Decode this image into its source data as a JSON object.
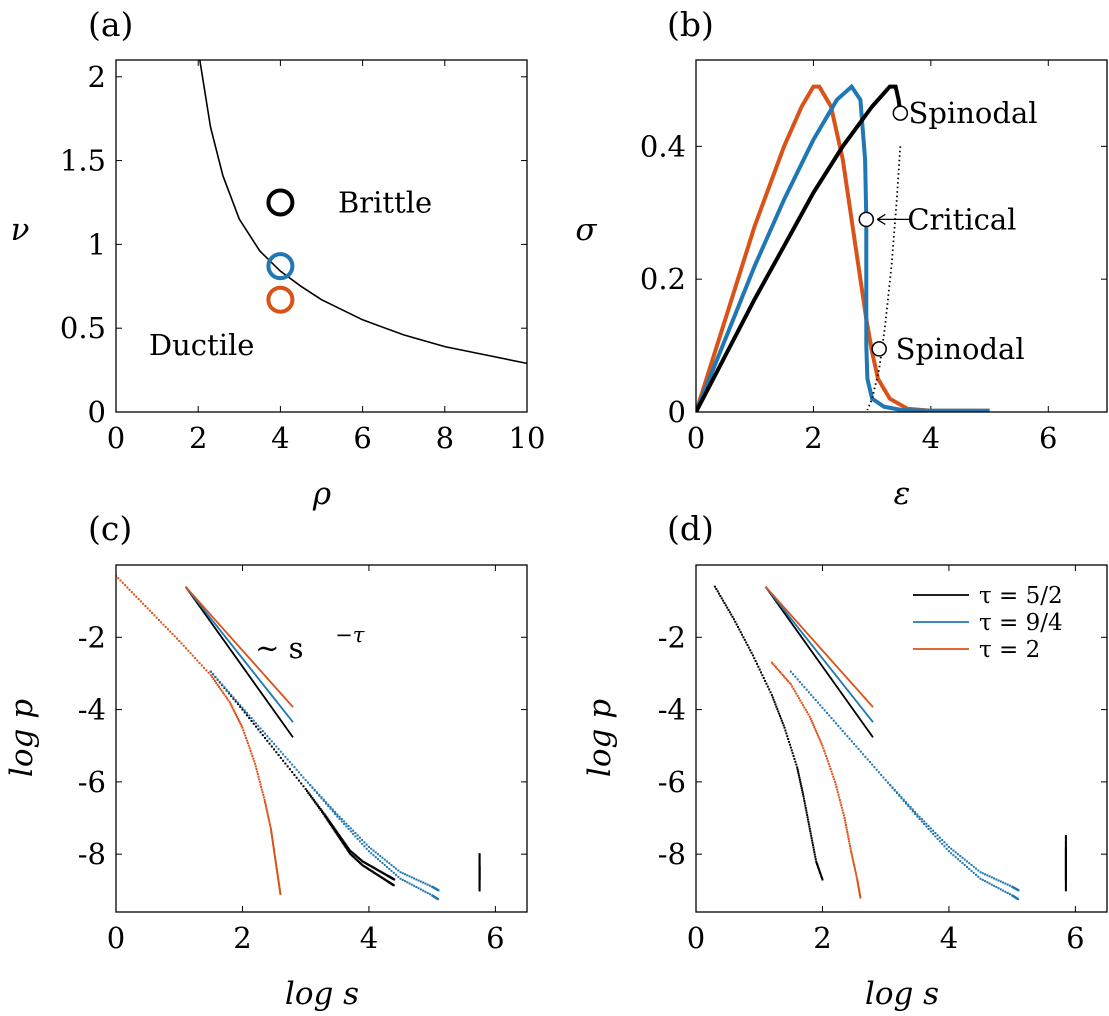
{
  "colors": {
    "black": "#000000",
    "blue": "#1f77b4",
    "orange": "#d95319"
  },
  "chart_data": [
    {
      "panel": "(a)",
      "type": "line",
      "xlabel": "ρ",
      "ylabel": "ν",
      "xlim": [
        0,
        10
      ],
      "ylim": [
        0,
        2.1
      ],
      "xticks": [
        "0",
        "2",
        "4",
        "6",
        "8",
        "10"
      ],
      "xtick_values": [
        0,
        2,
        4,
        6,
        8,
        10
      ],
      "yticks": [
        "0",
        "0.5",
        "1",
        "1.5",
        "2"
      ],
      "ytick_values": [
        0,
        0.5,
        1,
        1.5,
        2
      ],
      "series": [
        {
          "type": "line",
          "color": "#000000",
          "x": [
            2.04,
            2.3,
            2.6,
            3.0,
            3.5,
            4.0,
            4.5,
            5.0,
            6.0,
            7.0,
            8.0,
            9.0,
            10.0
          ],
          "y": [
            2.1,
            1.7,
            1.41,
            1.15,
            0.96,
            0.84,
            0.75,
            0.67,
            0.55,
            0.46,
            0.39,
            0.34,
            0.29
          ]
        },
        {
          "type": "marker",
          "color": "#000000",
          "x": 4,
          "y": 1.25
        },
        {
          "type": "marker",
          "color": "#1f77b4",
          "x": 4,
          "y": 0.87
        },
        {
          "type": "marker",
          "color": "#d95319",
          "x": 4,
          "y": 0.67
        }
      ],
      "annotations": [
        {
          "text": "Brittle",
          "x": 5.4,
          "y": 1.25
        },
        {
          "text": "Ductile",
          "x": 0.8,
          "y": 0.4
        }
      ]
    },
    {
      "panel": "(b)",
      "type": "line",
      "xlabel": "ε",
      "ylabel": "σ",
      "xlim": [
        0,
        7
      ],
      "ylim": [
        0,
        0.53
      ],
      "xticks": [
        "0",
        "2",
        "4",
        "6"
      ],
      "xtick_values": [
        0,
        2,
        4,
        6
      ],
      "yticks": [
        "0",
        "0.2",
        "0.4"
      ],
      "ytick_values": [
        0,
        0.2,
        0.4
      ],
      "series": [
        {
          "color": "#d95319",
          "x": [
            0,
            0.5,
            1.0,
            1.5,
            1.8,
            2.0,
            2.1,
            2.3,
            2.5,
            2.7,
            2.9,
            3.0,
            3.1,
            3.3,
            3.6,
            4.0,
            5.0
          ],
          "y": [
            0,
            0.14,
            0.28,
            0.4,
            0.46,
            0.49,
            0.49,
            0.46,
            0.38,
            0.26,
            0.14,
            0.09,
            0.05,
            0.02,
            0.005,
            0.002,
            0.002
          ]
        },
        {
          "color": "#1f77b4",
          "x": [
            0,
            0.5,
            1.0,
            1.5,
            2.0,
            2.4,
            2.65,
            2.8,
            2.88,
            2.9,
            2.9,
            2.92,
            3.0,
            3.2,
            3.5,
            4.0,
            5.0
          ],
          "y": [
            0,
            0.11,
            0.22,
            0.32,
            0.41,
            0.47,
            0.49,
            0.47,
            0.38,
            0.29,
            0.1,
            0.05,
            0.02,
            0.008,
            0.003,
            0.002,
            0.002
          ]
        },
        {
          "color": "#000000",
          "x": [
            0,
            0.5,
            1.0,
            1.5,
            2.0,
            2.5,
            3.0,
            3.3,
            3.4,
            3.45,
            3.48
          ],
          "y": [
            0,
            0.085,
            0.17,
            0.25,
            0.33,
            0.4,
            0.46,
            0.49,
            0.49,
            0.47,
            0.45
          ]
        },
        {
          "color": "#000000",
          "dotted": true,
          "x": [
            3.48,
            3.42,
            3.33,
            3.22,
            3.12,
            3.0,
            2.92
          ],
          "y": [
            0.4,
            0.32,
            0.22,
            0.13,
            0.065,
            0.02,
            0.003
          ]
        }
      ],
      "markers": [
        {
          "x": 3.48,
          "y": 0.45
        },
        {
          "x": 2.9,
          "y": 0.29
        },
        {
          "x": 3.12,
          "y": 0.095
        }
      ],
      "annotations": [
        {
          "text": "Spinodal",
          "x": 3.62,
          "y": 0.45
        },
        {
          "text": "Critical",
          "x": 3.6,
          "y": 0.29
        },
        {
          "text": "Spinodal",
          "x": 3.4,
          "y": 0.095
        }
      ]
    },
    {
      "panel": "(c)",
      "type": "scatter",
      "xlabel": "log s",
      "ylabel": "log p",
      "xlim": [
        0,
        6.5
      ],
      "ylim": [
        -9.6,
        0
      ],
      "xticks": [
        "0",
        "2",
        "4",
        "6"
      ],
      "xtick_values": [
        0,
        2,
        4,
        6
      ],
      "yticks": [
        "-8",
        "-6",
        "-4",
        "-2"
      ],
      "ytick_values": [
        -8,
        -6,
        -4,
        -2
      ],
      "reference_lines": [
        {
          "name": "τ = 5/2",
          "color": "#000000",
          "x": [
            1.1,
            2.8
          ],
          "y": [
            -0.6,
            -4.77
          ]
        },
        {
          "name": "τ = 9/4",
          "color": "#1f77b4",
          "x": [
            1.1,
            2.8
          ],
          "y": [
            -0.6,
            -4.35
          ]
        },
        {
          "name": "τ = 2",
          "color": "#d95319",
          "x": [
            1.1,
            2.8
          ],
          "y": [
            -0.6,
            -3.93
          ]
        }
      ],
      "scatter": [
        {
          "color": "#d95319",
          "x": [
            0,
            0.5,
            1.0,
            1.5,
            1.8,
            2.0,
            2.2,
            2.35,
            2.45,
            2.5,
            2.55,
            2.6
          ],
          "y": [
            -0.3,
            -1.2,
            -2.1,
            -3.05,
            -3.8,
            -4.5,
            -5.5,
            -6.5,
            -7.3,
            -7.9,
            -8.5,
            -9.1
          ]
        },
        {
          "color": "#000000",
          "x": [
            1.5,
            2.0,
            2.5,
            3.0,
            3.3,
            3.5,
            3.7,
            3.9,
            4.1,
            4.3,
            4.4
          ],
          "y": [
            -2.95,
            -4.0,
            -5.1,
            -6.2,
            -6.9,
            -7.4,
            -7.9,
            -8.2,
            -8.4,
            -8.6,
            -8.7
          ]
        },
        {
          "color": "#1f77b4",
          "x": [
            1.5,
            2.0,
            2.5,
            3.0,
            3.5,
            4.0,
            4.5,
            5.0,
            5.1
          ],
          "y": [
            -2.95,
            -3.95,
            -4.95,
            -5.95,
            -6.9,
            -7.8,
            -8.5,
            -8.9,
            -9.0
          ]
        },
        {
          "color": "#000000",
          "x": [
            5.75,
            5.75,
            5.75
          ],
          "y": [
            -8.0,
            -8.35,
            -8.7
          ]
        }
      ],
      "annotations": [
        {
          "text": "∼ s",
          "superscript": "−τ",
          "x": 2.2,
          "y": -2.3
        }
      ]
    },
    {
      "panel": "(d)",
      "type": "scatter",
      "xlabel": "log s",
      "ylabel": "log p",
      "xlim": [
        0,
        6.5
      ],
      "ylim": [
        -9.6,
        0
      ],
      "xticks": [
        "0",
        "2",
        "4",
        "6"
      ],
      "xtick_values": [
        0,
        2,
        4,
        6
      ],
      "yticks": [
        "-8",
        "-6",
        "-4",
        "-2"
      ],
      "ytick_values": [
        -8,
        -6,
        -4,
        -2
      ],
      "reference_lines": [
        {
          "name": "τ = 5/2",
          "color": "#000000",
          "x": [
            1.1,
            2.8
          ],
          "y": [
            -0.6,
            -4.77
          ]
        },
        {
          "name": "τ = 9/4",
          "color": "#1f77b4",
          "x": [
            1.1,
            2.8
          ],
          "y": [
            -0.6,
            -4.35
          ]
        },
        {
          "name": "τ = 2",
          "color": "#d95319",
          "x": [
            1.1,
            2.8
          ],
          "y": [
            -0.6,
            -3.93
          ]
        }
      ],
      "scatter": [
        {
          "color": "#000000",
          "x": [
            0.3,
            0.6,
            0.9,
            1.2,
            1.4,
            1.6,
            1.7,
            1.8,
            1.9,
            2.0
          ],
          "y": [
            -0.6,
            -1.5,
            -2.5,
            -3.6,
            -4.5,
            -5.6,
            -6.4,
            -7.3,
            -8.2,
            -8.7
          ]
        },
        {
          "color": "#d95319",
          "x": [
            1.2,
            1.5,
            1.8,
            2.0,
            2.2,
            2.35,
            2.45,
            2.55,
            2.6
          ],
          "y": [
            -2.7,
            -3.3,
            -4.2,
            -5.0,
            -6.0,
            -7.0,
            -7.9,
            -8.7,
            -9.2
          ]
        },
        {
          "color": "#1f77b4",
          "x": [
            1.5,
            2.0,
            2.5,
            3.0,
            3.5,
            4.0,
            4.5,
            5.0,
            5.1
          ],
          "y": [
            -2.95,
            -3.95,
            -4.95,
            -5.95,
            -6.9,
            -7.8,
            -8.5,
            -8.9,
            -9.0
          ]
        },
        {
          "color": "#000000",
          "x": [
            5.85,
            5.85,
            5.85
          ],
          "y": [
            -7.5,
            -8.1,
            -8.7
          ]
        }
      ],
      "legend": {
        "position": "top-right",
        "entries": [
          {
            "label": "τ = 5/2",
            "color": "#000000"
          },
          {
            "label": "τ = 9/4",
            "color": "#1f77b4"
          },
          {
            "label": "τ = 2",
            "color": "#d95319"
          }
        ]
      }
    }
  ]
}
